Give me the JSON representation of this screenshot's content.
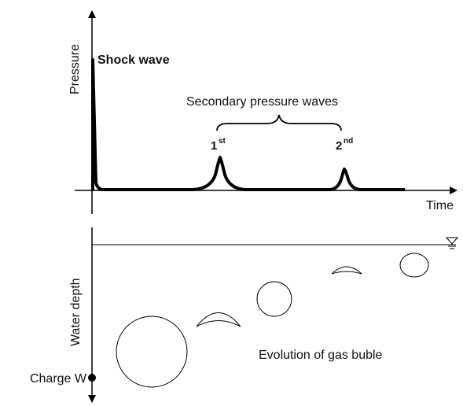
{
  "pressure_plot": {
    "y_label": "Pressure",
    "x_label": "Time",
    "shock_label": "Shock wave",
    "secondary_label": "Secondary pressure waves",
    "first": {
      "number": "1",
      "suffix": "st"
    },
    "second": {
      "number": "2",
      "suffix": "nd"
    }
  },
  "depth_plot": {
    "y_label": "Water depth",
    "bubble_label": "Evolution of gas buble",
    "charge_label": "Charge W"
  }
}
